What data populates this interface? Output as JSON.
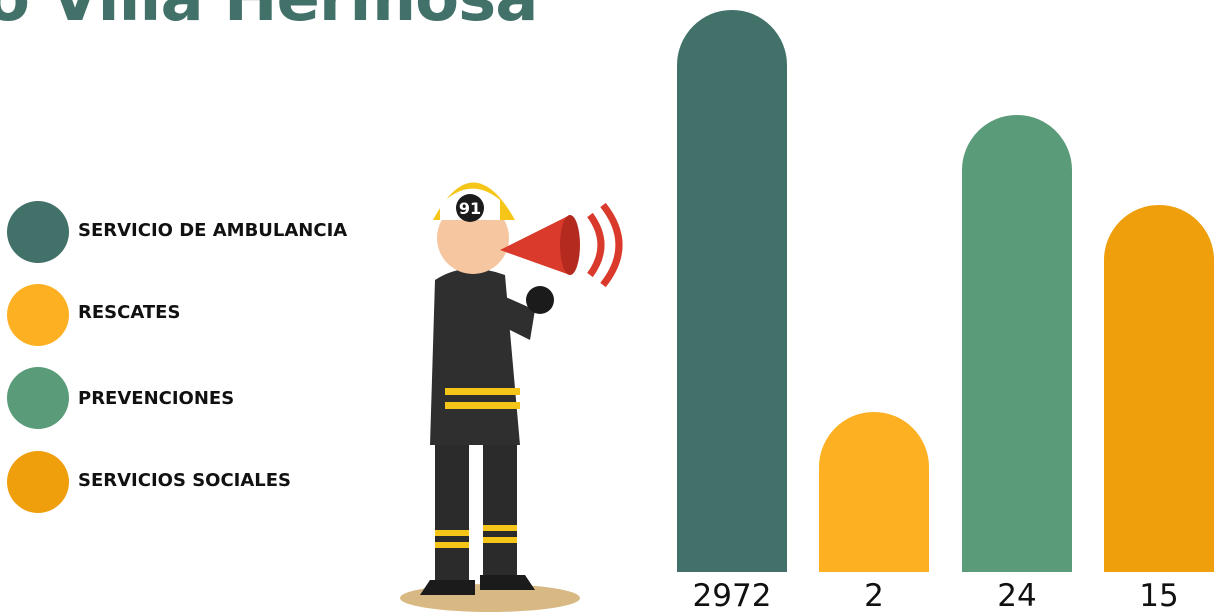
{
  "header": {
    "title": "o Villa Hermosa"
  },
  "legend": [
    "SERVICIO DE AMBULANCIA",
    "RESCATES",
    "PREVENCIONES",
    "SERVICIOS SOCIALES"
  ],
  "values": [
    2972,
    2,
    24,
    15
  ]
}
